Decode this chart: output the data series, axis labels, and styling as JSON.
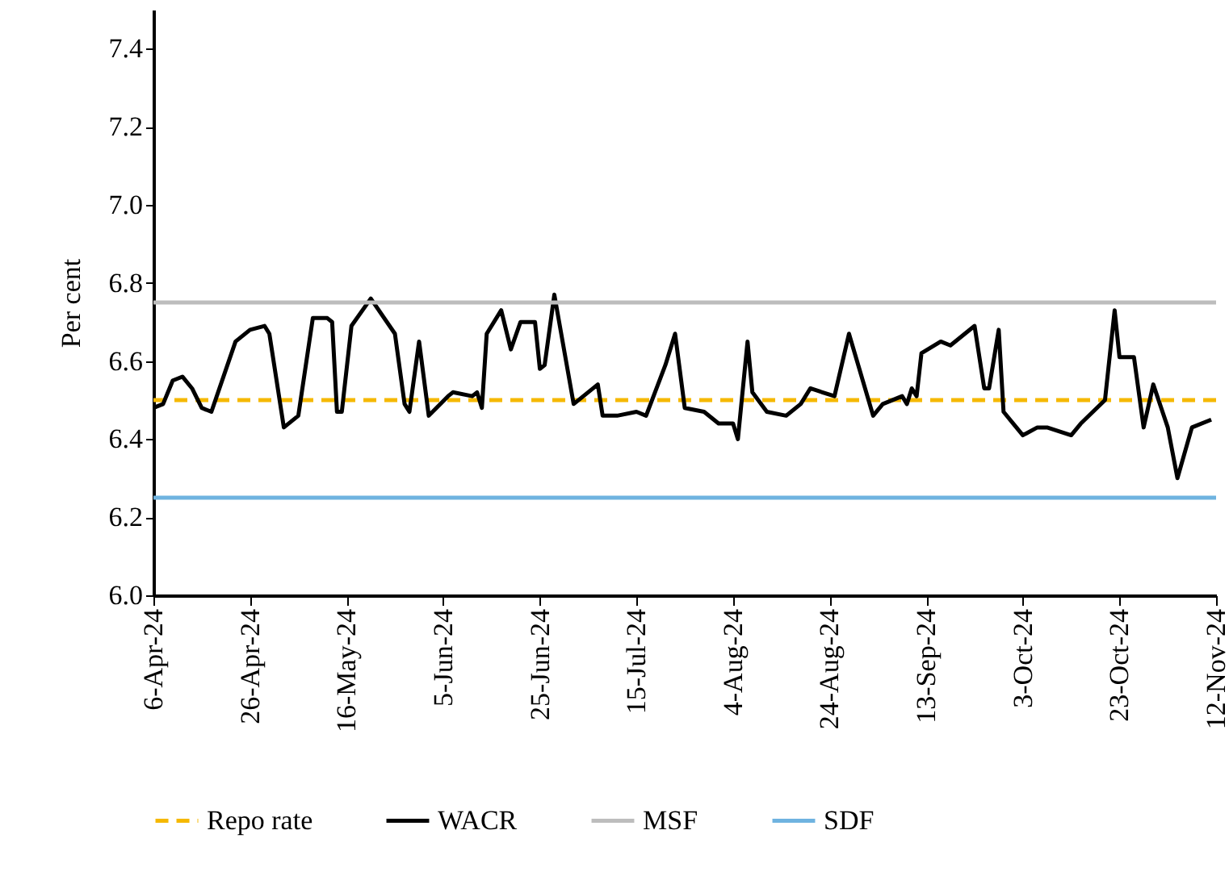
{
  "chart_data": {
    "type": "line",
    "ylabel": "Per cent",
    "xlim": [
      "2024-04-06",
      "2024-11-12"
    ],
    "xticks": [
      {
        "value": "2024-04-06",
        "label": "6-Apr-24"
      },
      {
        "value": "2024-04-26",
        "label": "26-Apr-24"
      },
      {
        "value": "2024-05-16",
        "label": "16-May-24"
      },
      {
        "value": "2024-06-05",
        "label": "5-Jun-24"
      },
      {
        "value": "2024-06-25",
        "label": "25-Jun-24"
      },
      {
        "value": "2024-07-15",
        "label": "15-Jul-24"
      },
      {
        "value": "2024-08-04",
        "label": "4-Aug-24"
      },
      {
        "value": "2024-08-24",
        "label": "24-Aug-24"
      },
      {
        "value": "2024-09-13",
        "label": "13-Sep-24"
      },
      {
        "value": "2024-10-03",
        "label": "3-Oct-24"
      },
      {
        "value": "2024-10-23",
        "label": "23-Oct-24"
      },
      {
        "value": "2024-11-12",
        "label": "12-Nov-24"
      }
    ],
    "ylim": [
      6.0,
      7.5
    ],
    "yticks": [
      {
        "value": 6,
        "label": "6.0"
      },
      {
        "value": 6.2,
        "label": "6.2"
      },
      {
        "value": 6.4,
        "label": "6.4"
      },
      {
        "value": 6.6,
        "label": "6.6"
      },
      {
        "value": 6.8,
        "label": "6.8"
      },
      {
        "value": 7,
        "label": "7.0"
      },
      {
        "value": 7.2,
        "label": "7.2"
      },
      {
        "value": 7.4,
        "label": "7.4"
      }
    ],
    "grid": false,
    "legend": "bottom",
    "marker": "none",
    "series": [
      {
        "name": "Repo rate",
        "color": "#f5b800",
        "line_style": "dashed",
        "x": [
          "2024-04-06",
          "2024-11-12"
        ],
        "values": [
          6.5,
          6.5
        ]
      },
      {
        "name": "WACR",
        "color": "#000000",
        "line_style": "solid",
        "x": [
          "2024-04-06",
          "2024-04-08",
          "2024-04-10",
          "2024-04-12",
          "2024-04-14",
          "2024-04-16",
          "2024-04-18",
          "2024-04-23",
          "2024-04-26",
          "2024-04-29",
          "2024-04-30",
          "2024-05-03",
          "2024-05-06",
          "2024-05-09",
          "2024-05-12",
          "2024-05-13",
          "2024-05-14",
          "2024-05-15",
          "2024-05-17",
          "2024-05-21",
          "2024-05-26",
          "2024-05-28",
          "2024-05-29",
          "2024-05-31",
          "2024-06-02",
          "2024-06-06",
          "2024-06-07",
          "2024-06-11",
          "2024-06-12",
          "2024-06-13",
          "2024-06-14",
          "2024-06-17",
          "2024-06-19",
          "2024-06-21",
          "2024-06-24",
          "2024-06-25",
          "2024-06-26",
          "2024-06-28",
          "2024-07-02",
          "2024-07-07",
          "2024-07-08",
          "2024-07-11",
          "2024-07-15",
          "2024-07-17",
          "2024-07-21",
          "2024-07-23",
          "2024-07-25",
          "2024-07-29",
          "2024-08-01",
          "2024-08-04",
          "2024-08-05",
          "2024-08-07",
          "2024-08-08",
          "2024-08-11",
          "2024-08-15",
          "2024-08-18",
          "2024-08-20",
          "2024-08-25",
          "2024-08-28",
          "2024-09-02",
          "2024-09-04",
          "2024-09-08",
          "2024-09-09",
          "2024-09-10",
          "2024-09-11",
          "2024-09-12",
          "2024-09-16",
          "2024-09-18",
          "2024-09-23",
          "2024-09-25",
          "2024-09-26",
          "2024-09-28",
          "2024-09-29",
          "2024-10-01",
          "2024-10-03",
          "2024-10-06",
          "2024-10-08",
          "2024-10-13",
          "2024-10-15",
          "2024-10-20",
          "2024-10-22",
          "2024-10-23",
          "2024-10-26",
          "2024-10-28",
          "2024-10-30",
          "2024-11-02",
          "2024-11-04",
          "2024-11-07",
          "2024-11-11"
        ],
        "values": [
          6.48,
          6.49,
          6.55,
          6.56,
          6.53,
          6.48,
          6.47,
          6.65,
          6.68,
          6.69,
          6.67,
          6.43,
          6.46,
          6.71,
          6.71,
          6.7,
          6.47,
          6.47,
          6.69,
          6.76,
          6.67,
          6.49,
          6.47,
          6.65,
          6.46,
          6.51,
          6.52,
          6.51,
          6.52,
          6.48,
          6.67,
          6.73,
          6.63,
          6.7,
          6.7,
          6.58,
          6.59,
          6.77,
          6.49,
          6.54,
          6.46,
          6.46,
          6.47,
          6.46,
          6.59,
          6.67,
          6.48,
          6.47,
          6.44,
          6.44,
          6.4,
          6.65,
          6.52,
          6.47,
          6.46,
          6.49,
          6.53,
          6.51,
          6.67,
          6.46,
          6.49,
          6.51,
          6.49,
          6.53,
          6.51,
          6.62,
          6.65,
          6.64,
          6.69,
          6.53,
          6.53,
          6.68,
          6.47,
          6.44,
          6.41,
          6.43,
          6.43,
          6.41,
          6.44,
          6.5,
          6.73,
          6.61,
          6.61,
          6.43,
          6.54,
          6.43,
          6.3,
          6.43,
          6.45
        ]
      },
      {
        "name": "MSF",
        "color": "#bdbdbd",
        "line_style": "solid",
        "x": [
          "2024-04-06",
          "2024-11-12"
        ],
        "values": [
          6.75,
          6.75
        ]
      },
      {
        "name": "SDF",
        "color": "#6fb3e0",
        "line_style": "solid",
        "x": [
          "2024-04-06",
          "2024-11-12"
        ],
        "values": [
          6.25,
          6.25
        ]
      }
    ]
  }
}
